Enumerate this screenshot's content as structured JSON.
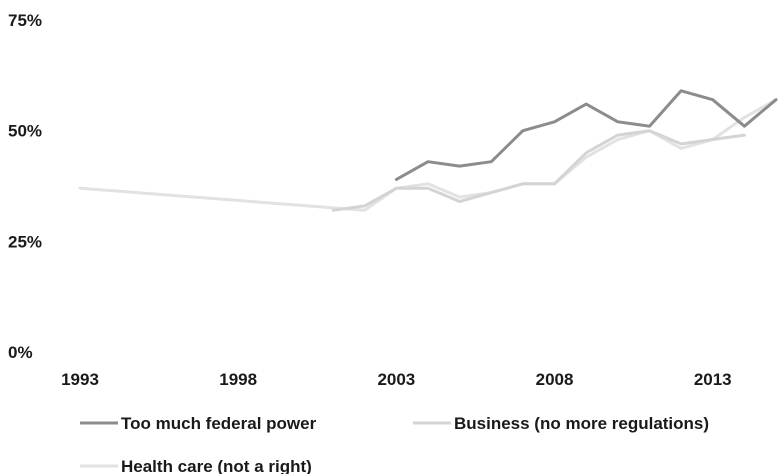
{
  "chart_data": {
    "type": "line",
    "title": "",
    "xlabel": "",
    "ylabel": "",
    "xlim": [
      1993,
      2015
    ],
    "ylim": [
      0,
      75
    ],
    "x_ticks": [
      1993,
      1998,
      2003,
      2008,
      2013
    ],
    "x_tick_labels": [
      "1993",
      "1998",
      "2003",
      "2008",
      "2013"
    ],
    "y_ticks": [
      0,
      25,
      50,
      75
    ],
    "y_tick_labels": [
      "0%",
      "25%",
      "50%",
      "75%"
    ],
    "grid": false,
    "legend_position": "bottom",
    "series": [
      {
        "name": "Too much federal power",
        "color": "#8c8c8c",
        "points": [
          [
            2003,
            39
          ],
          [
            2004,
            43
          ],
          [
            2005,
            42
          ],
          [
            2006,
            43
          ],
          [
            2007,
            50
          ],
          [
            2008,
            52
          ],
          [
            2009,
            56
          ],
          [
            2010,
            52
          ],
          [
            2011,
            51
          ],
          [
            2012,
            59
          ],
          [
            2013,
            57
          ],
          [
            2014,
            51
          ],
          [
            2015,
            57
          ]
        ]
      },
      {
        "name": "Business (no more regulations)",
        "color": "#d4d4d4",
        "points": [
          [
            2001,
            32
          ],
          [
            2002,
            33
          ],
          [
            2003,
            37
          ],
          [
            2004,
            37
          ],
          [
            2005,
            34
          ],
          [
            2006,
            36
          ],
          [
            2007,
            38
          ],
          [
            2008,
            38
          ],
          [
            2009,
            45
          ],
          [
            2010,
            49
          ],
          [
            2011,
            50
          ],
          [
            2012,
            47
          ],
          [
            2013,
            48
          ],
          [
            2014,
            49
          ]
        ]
      },
      {
        "name": "Health care (not a right)",
        "color": "#e2e2e2",
        "points": [
          [
            1993,
            37
          ],
          [
            2002,
            32
          ],
          [
            2003,
            37
          ],
          [
            2004,
            38
          ],
          [
            2005,
            35
          ],
          [
            2006,
            36
          ],
          [
            2007,
            38
          ],
          [
            2008,
            38
          ],
          [
            2009,
            44
          ],
          [
            2010,
            48
          ],
          [
            2011,
            50
          ],
          [
            2012,
            46
          ],
          [
            2013,
            48
          ],
          [
            2014,
            53
          ],
          [
            2015,
            57
          ]
        ]
      }
    ]
  }
}
